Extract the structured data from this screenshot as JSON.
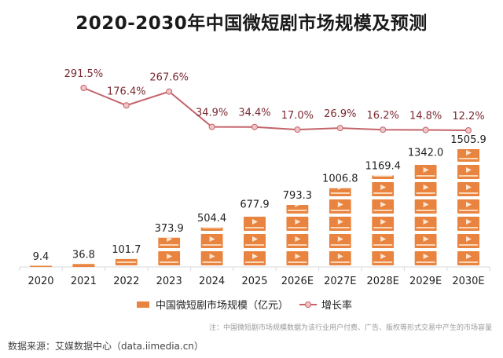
{
  "title": "2020-2030年中国微短剧市场规模及预测",
  "chart_data": {
    "type": "bar",
    "title": "2020-2030年中国微短剧市场规模及预测",
    "categories": [
      "2020",
      "2021",
      "2022",
      "2023",
      "2024",
      "2025",
      "2026E",
      "2027E",
      "2028E",
      "2029E",
      "2030E"
    ],
    "series": [
      {
        "name": "中国微短剧市场规模（亿元）",
        "type": "bar",
        "color": "#e8843f",
        "values": [
          9.4,
          36.8,
          101.7,
          373.9,
          504.4,
          677.9,
          793.3,
          1006.8,
          1169.4,
          1342.0,
          1505.9
        ],
        "labels": [
          "9.4",
          "36.8",
          "101.7",
          "373.9",
          "504.4",
          "677.9",
          "793.3",
          "1006.8",
          "1169.4",
          "1342.0",
          "1505.9"
        ]
      },
      {
        "name": "增长率",
        "type": "line",
        "color": "#c4636b",
        "values": [
          null,
          291.5,
          176.4,
          267.6,
          34.9,
          34.4,
          17.0,
          26.9,
          16.2,
          14.8,
          12.2
        ],
        "labels": [
          "",
          "291.5%",
          "176.4%",
          "267.6%",
          "34.9%",
          "34.4%",
          "17.0%",
          "26.9%",
          "16.2%",
          "14.8%",
          "12.2%"
        ]
      }
    ],
    "xlabel": "",
    "ylabel": "",
    "legend": "bottom-center",
    "grid": false
  },
  "legend": {
    "bar_label": "中国微短剧市场规模（亿元）",
    "line_label": "增长率"
  },
  "note": "注：中国微短剧市场规模数据为该行业用户付费、广告、版权等形式交易中产生的市场容量",
  "source": "数据来源：艾媒数据中心（data.iimedia.cn）"
}
